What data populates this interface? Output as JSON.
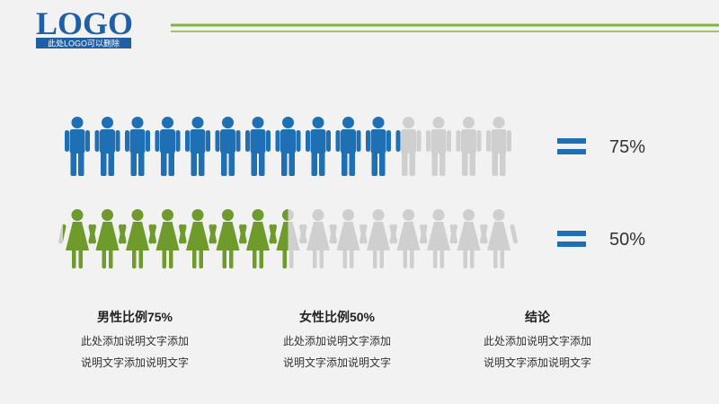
{
  "logo": {
    "title": "LOGO",
    "subtitle": "此处LOGO可以删除"
  },
  "chart_data": [
    {
      "type": "pictogram",
      "icon": "male",
      "values": [
        75
      ],
      "value_labels": [
        "75%"
      ],
      "color": "#1f6fb5"
    },
    {
      "type": "pictogram",
      "icon": "female",
      "values": [
        50
      ],
      "value_labels": [
        "50%"
      ],
      "color": "#6f9a2c"
    }
  ],
  "captions": [
    {
      "title": "男性比例75%",
      "lines": [
        "此处添加说明文字添加",
        "说明文字添加说明文字"
      ]
    },
    {
      "title": "女性比例50%",
      "lines": [
        "此处添加说明文字添加",
        "说明文字添加说明文字"
      ]
    },
    {
      "title": "结论",
      "lines": [
        "此处添加说明文字添加",
        "说明文字添加说明文字"
      ]
    }
  ]
}
